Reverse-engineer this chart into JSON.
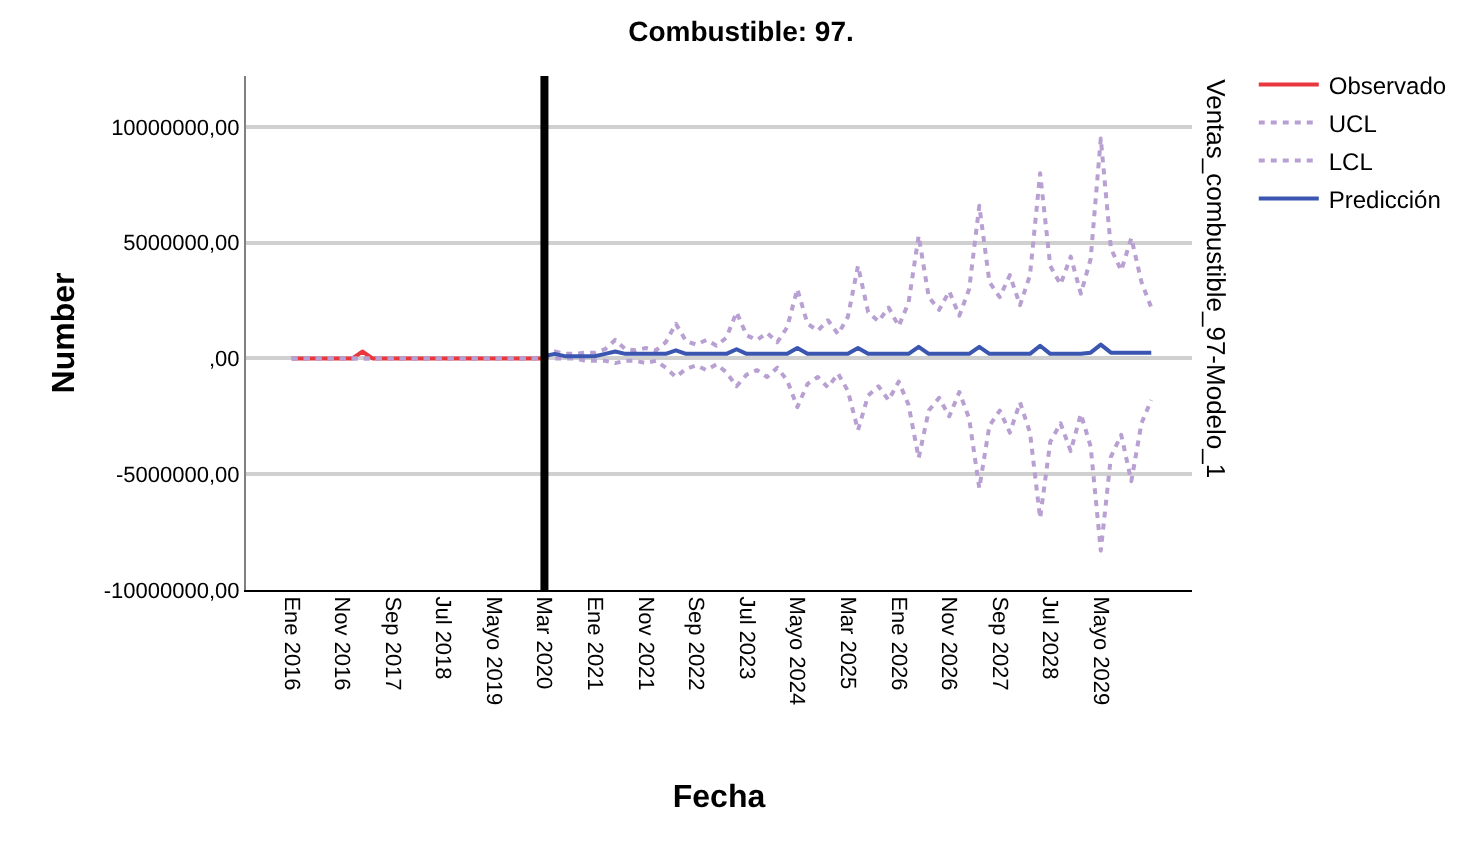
{
  "chart_data": {
    "type": "line",
    "title": "Combustible: 97.",
    "xlabel": "Fecha",
    "ylabel": "Number",
    "legend_title": "Ventas_combustible_97-Modelo_1",
    "legend": "top right",
    "grid": "y",
    "marker": "none",
    "xlim": [
      "2015-04",
      "2030-11"
    ],
    "ylim": [
      -10000000,
      12200000
    ],
    "xticks": [
      {
        "value": "2016-01",
        "label": "Ene 2016"
      },
      {
        "value": "2016-11",
        "label": "Nov 2016"
      },
      {
        "value": "2017-09",
        "label": "Sep 2017"
      },
      {
        "value": "2018-07",
        "label": "Jul 2018"
      },
      {
        "value": "2019-05",
        "label": "Mayo 2019"
      },
      {
        "value": "2020-03",
        "label": "Mar 2020"
      },
      {
        "value": "2021-01",
        "label": "Ene 2021"
      },
      {
        "value": "2021-11",
        "label": "Nov 2021"
      },
      {
        "value": "2022-09",
        "label": "Sep 2022"
      },
      {
        "value": "2023-07",
        "label": "Jul 2023"
      },
      {
        "value": "2024-05",
        "label": "Mayo 2024"
      },
      {
        "value": "2025-03",
        "label": "Mar 2025"
      },
      {
        "value": "2026-01",
        "label": "Ene 2026"
      },
      {
        "value": "2026-11",
        "label": "Nov 2026"
      },
      {
        "value": "2027-09",
        "label": "Sep 2027"
      },
      {
        "value": "2028-07",
        "label": "Jul 2028"
      },
      {
        "value": "2029-05",
        "label": "Mayo 2029"
      }
    ],
    "yticks": [
      {
        "value": -10000000,
        "label": "-10000000,00"
      },
      {
        "value": -5000000,
        "label": "-5000000,00"
      },
      {
        "value": 0,
        "label": ",00"
      },
      {
        "value": 5000000,
        "label": "5000000,00"
      },
      {
        "value": 10000000,
        "label": "10000000,00"
      }
    ],
    "ref_lines": [
      {
        "axis": "x",
        "value": "2020-03",
        "color": "#000000"
      }
    ],
    "series": [
      {
        "name": "Observado",
        "color": "#e8383d",
        "line_style": "solid",
        "x": [
          "2016-01",
          "2016-03",
          "2016-05",
          "2016-07",
          "2016-09",
          "2016-11",
          "2017-01",
          "2017-03",
          "2017-05",
          "2017-07",
          "2017-09",
          "2017-11",
          "2018-01",
          "2018-03",
          "2018-05",
          "2018-07",
          "2018-09",
          "2018-11",
          "2019-01",
          "2019-03",
          "2019-05",
          "2019-07",
          "2019-09",
          "2019-11",
          "2020-01",
          "2020-03"
        ],
        "values": [
          0,
          0,
          0,
          0,
          0,
          0,
          0,
          300000,
          0,
          0,
          0,
          0,
          0,
          0,
          0,
          0,
          0,
          0,
          0,
          0,
          0,
          0,
          0,
          0,
          0,
          0
        ]
      },
      {
        "name": "UCL",
        "color": "#b8a0d2",
        "line_style": "dotted",
        "x": [
          "2016-01",
          "2017-01",
          "2018-01",
          "2019-01",
          "2020-01",
          "2020-03",
          "2020-05",
          "2020-07",
          "2020-09",
          "2020-11",
          "2021-01",
          "2021-03",
          "2021-05",
          "2021-07",
          "2021-09",
          "2021-11",
          "2022-01",
          "2022-03",
          "2022-05",
          "2022-07",
          "2022-09",
          "2022-11",
          "2023-01",
          "2023-03",
          "2023-05",
          "2023-07",
          "2023-09",
          "2023-11",
          "2024-01",
          "2024-03",
          "2024-05",
          "2024-07",
          "2024-09",
          "2024-11",
          "2025-01",
          "2025-03",
          "2025-05",
          "2025-07",
          "2025-09",
          "2025-11",
          "2026-01",
          "2026-03",
          "2026-05",
          "2026-07",
          "2026-09",
          "2026-11",
          "2027-01",
          "2027-03",
          "2027-05",
          "2027-07",
          "2027-09",
          "2027-11",
          "2028-01",
          "2028-03",
          "2028-05",
          "2028-07",
          "2028-09",
          "2028-11",
          "2029-01",
          "2029-03",
          "2029-05",
          "2029-07",
          "2029-09",
          "2029-11",
          "2030-01",
          "2030-03"
        ],
        "values": [
          0,
          0,
          0,
          0,
          0,
          100000,
          300000,
          200000,
          200000,
          250000,
          250000,
          400000,
          800000,
          400000,
          350000,
          450000,
          350000,
          700000,
          1500000,
          750000,
          600000,
          800000,
          550000,
          900000,
          2000000,
          1000000,
          800000,
          1100000,
          700000,
          1350000,
          3000000,
          1500000,
          1200000,
          1650000,
          1050000,
          1800000,
          4000000,
          2000000,
          1600000,
          2200000,
          1400000,
          2400000,
          5300000,
          2650000,
          2100000,
          2900000,
          1850000,
          3000000,
          6600000,
          3300000,
          2650000,
          3600000,
          2300000,
          3600000,
          8000000,
          4000000,
          3200000,
          4400000,
          2800000,
          4300000,
          9500000,
          4750000,
          3800000,
          5200000,
          3300000,
          2200000
        ]
      },
      {
        "name": "LCL",
        "color": "#b8a0d2",
        "line_style": "dotted",
        "x": [
          "2016-01",
          "2017-01",
          "2018-01",
          "2019-01",
          "2020-01",
          "2020-03",
          "2020-05",
          "2020-07",
          "2020-09",
          "2020-11",
          "2021-01",
          "2021-03",
          "2021-05",
          "2021-07",
          "2021-09",
          "2021-11",
          "2022-01",
          "2022-03",
          "2022-05",
          "2022-07",
          "2022-09",
          "2022-11",
          "2023-01",
          "2023-03",
          "2023-05",
          "2023-07",
          "2023-09",
          "2023-11",
          "2024-01",
          "2024-03",
          "2024-05",
          "2024-07",
          "2024-09",
          "2024-11",
          "2025-01",
          "2025-03",
          "2025-05",
          "2025-07",
          "2025-09",
          "2025-11",
          "2026-01",
          "2026-03",
          "2026-05",
          "2026-07",
          "2026-09",
          "2026-11",
          "2027-01",
          "2027-03",
          "2027-05",
          "2027-07",
          "2027-09",
          "2027-11",
          "2028-01",
          "2028-03",
          "2028-05",
          "2028-07",
          "2028-09",
          "2028-11",
          "2029-01",
          "2029-03",
          "2029-05",
          "2029-07",
          "2029-09",
          "2029-11",
          "2030-01",
          "2030-03"
        ],
        "values": [
          0,
          0,
          0,
          0,
          0,
          100000,
          0,
          0,
          0,
          -100000,
          -100000,
          -100000,
          -200000,
          -100000,
          -100000,
          -200000,
          -100000,
          -400000,
          -800000,
          -450000,
          -300000,
          -500000,
          -250000,
          -600000,
          -1200000,
          -700000,
          -500000,
          -800000,
          -400000,
          -950000,
          -2100000,
          -1100000,
          -800000,
          -1250000,
          -650000,
          -1400000,
          -3100000,
          -1600000,
          -1200000,
          -1800000,
          -1000000,
          -2000000,
          -4300000,
          -2250000,
          -1700000,
          -2500000,
          -1450000,
          -2600000,
          -5600000,
          -2900000,
          -2250000,
          -3200000,
          -1900000,
          -3200000,
          -6900000,
          -3600000,
          -2800000,
          -4000000,
          -2400000,
          -3800000,
          -8300000,
          -4250000,
          -3300000,
          -5300000,
          -2800000,
          -1800000
        ]
      },
      {
        "name": "Predicción",
        "color": "#3a56b0",
        "line_style": "solid",
        "x": [
          "2020-03",
          "2020-05",
          "2020-07",
          "2020-09",
          "2020-11",
          "2021-01",
          "2021-03",
          "2021-05",
          "2021-07",
          "2021-09",
          "2021-11",
          "2022-01",
          "2022-03",
          "2022-05",
          "2022-07",
          "2022-09",
          "2022-11",
          "2023-01",
          "2023-03",
          "2023-05",
          "2023-07",
          "2023-09",
          "2023-11",
          "2024-01",
          "2024-03",
          "2024-05",
          "2024-07",
          "2024-09",
          "2024-11",
          "2025-01",
          "2025-03",
          "2025-05",
          "2025-07",
          "2025-09",
          "2025-11",
          "2026-01",
          "2026-03",
          "2026-05",
          "2026-07",
          "2026-09",
          "2026-11",
          "2027-01",
          "2027-03",
          "2027-05",
          "2027-07",
          "2027-09",
          "2027-11",
          "2028-01",
          "2028-03",
          "2028-05",
          "2028-07",
          "2028-09",
          "2028-11",
          "2029-01",
          "2029-03",
          "2029-05",
          "2029-07",
          "2029-09",
          "2029-11",
          "2030-01",
          "2030-03"
        ],
        "values": [
          100000,
          200000,
          100000,
          100000,
          100000,
          100000,
          200000,
          300000,
          200000,
          200000,
          200000,
          200000,
          200000,
          350000,
          200000,
          200000,
          200000,
          200000,
          200000,
          400000,
          200000,
          200000,
          200000,
          200000,
          200000,
          450000,
          200000,
          200000,
          200000,
          200000,
          200000,
          450000,
          200000,
          200000,
          200000,
          200000,
          200000,
          500000,
          200000,
          200000,
          200000,
          200000,
          200000,
          500000,
          200000,
          200000,
          200000,
          200000,
          200000,
          550000,
          200000,
          200000,
          200000,
          200000,
          250000,
          600000,
          250000,
          250000,
          250000,
          250000,
          250000
        ]
      }
    ]
  }
}
